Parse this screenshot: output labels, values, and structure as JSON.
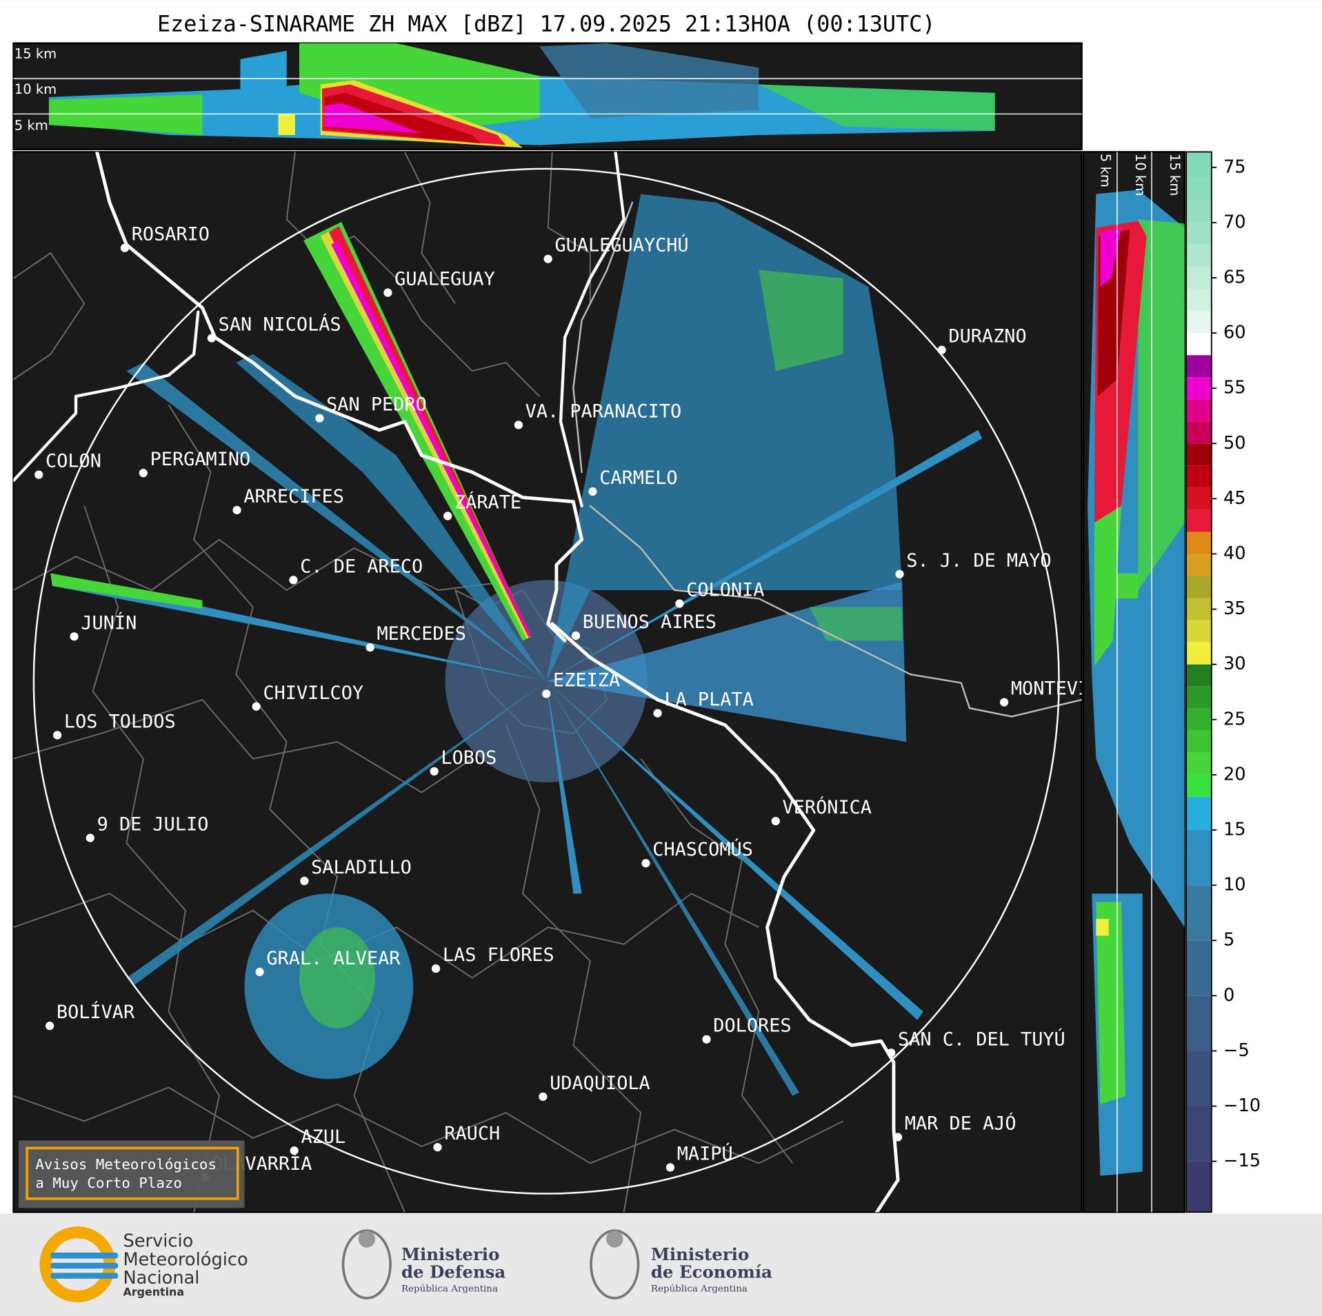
{
  "header": {
    "title": "Ezeiza-SINARAME ZH MAX [dBZ] 17.09.2025 21:13HOA (00:13UTC)"
  },
  "top_panel": {
    "altitude_labels": [
      "15 km",
      "10 km",
      "5 km"
    ]
  },
  "side_panel": {
    "altitude_labels": [
      "5 km",
      "10 km",
      "15 km"
    ]
  },
  "cities": [
    "ROSARIO",
    "GUALEGUAYCHÚ",
    "GUALEGUAY",
    "SAN NICOLÁS",
    "DURAZNO",
    "SAN PEDRO",
    "VA. PARANACITO",
    "COLON",
    "PERGAMINO",
    "CARMELO",
    "ARRECIFES",
    "ZÁRATE",
    "S. J. DE MAYO",
    "C. DE ARECO",
    "COLONIA",
    "BUENOS AIRES",
    "JUNÍN",
    "MERCEDES",
    "EZEIZA",
    "MONTEVIDEO",
    "CHIVILCOY",
    "LA PLATA",
    "LOS TOLDOS",
    "LOBOS",
    "VERÓNICA",
    "9 DE JULIO",
    "CHASCOMÚS",
    "SALADILLO",
    "GRAL. ALVEAR",
    "LAS FLORES",
    "BOLÍVAR",
    "DOLORES",
    "SAN C. DEL TUYÚ",
    "UDAQUIOLA",
    "MAR DE AJÓ",
    "AZUL",
    "RAUCH",
    "OLAVARRÍA",
    "MAIPÚ"
  ],
  "colorbar": {
    "lim": [
      -19.6,
      76.4
    ],
    "levels": [
      -19.6,
      -15,
      -10,
      -5,
      0,
      5,
      10,
      15,
      18,
      20,
      22,
      24,
      26,
      28,
      30,
      32,
      34,
      36,
      38,
      40,
      42,
      44,
      46,
      48,
      50,
      52,
      54,
      56,
      58,
      60,
      62,
      64,
      66,
      68,
      70,
      72,
      74,
      76.4
    ],
    "colors": [
      "#3c3b6e",
      "#3b4676",
      "#3a517e",
      "#3a5e88",
      "#3a6b93",
      "#3a7ba2",
      "#2e8fc0",
      "#27aee0",
      "#38e040",
      "#46d63a",
      "#3cc434",
      "#34b02e",
      "#2c9a28",
      "#237f22",
      "#f0f03a",
      "#d8d838",
      "#c0c030",
      "#aaa82a",
      "#d8a020",
      "#e08818",
      "#e81838",
      "#d81020",
      "#c00010",
      "#a00008",
      "#c8005a",
      "#e0008a",
      "#f000d0",
      "#a000a0",
      "#ffffff",
      "#e4f6ee",
      "#d0f0e0",
      "#c0ecd8",
      "#b0e6d0",
      "#a0e2c8",
      "#94dec2",
      "#8adcbc",
      "#82dab8"
    ],
    "ticks": [
      {
        "value": -15,
        "label": "−15"
      },
      {
        "value": -10,
        "label": "−10"
      },
      {
        "value": -5,
        "label": "−5"
      },
      0,
      5,
      10,
      15,
      20,
      25,
      30,
      35,
      40,
      45,
      50,
      55,
      60,
      65,
      70,
      75
    ]
  },
  "warning": {
    "lines": [
      "Avisos Meteorológicos",
      "a Muy Corto Plazo"
    ]
  },
  "footer": {
    "smn": [
      "Servicio",
      "Meteorológico",
      "Nacional",
      "Argentina"
    ],
    "defensa": [
      "Ministerio",
      "de Defensa",
      "República Argentina"
    ],
    "economia": [
      "Ministerio",
      "de Economía",
      "República Argentina"
    ]
  }
}
